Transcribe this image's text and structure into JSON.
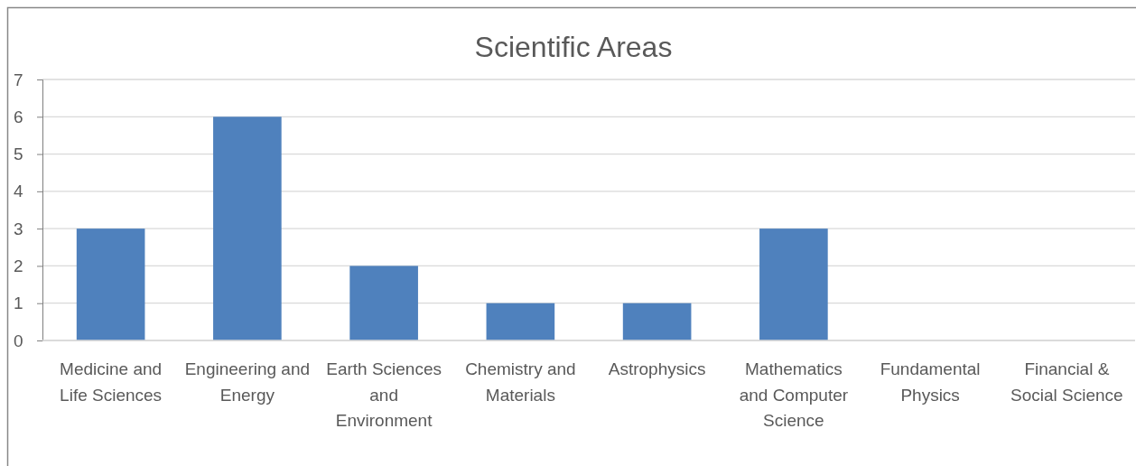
{
  "chart_data": {
    "type": "bar",
    "title": "Scientific Areas",
    "categories": [
      "Medicine and Life Sciences",
      "Engineering and Energy",
      "Earth Sciences and Environment",
      "Chemistry and Materials",
      "Astrophysics",
      "Mathematics and Computer Science",
      "Fundamental Physics",
      "Financial & Social Science"
    ],
    "values": [
      3,
      6,
      2,
      1,
      1,
      3,
      0,
      0
    ],
    "color": "#4f81bd",
    "ylim": [
      0,
      7
    ],
    "yticks": [
      0,
      1,
      2,
      3,
      4,
      5,
      6,
      7
    ],
    "grid": "y"
  }
}
